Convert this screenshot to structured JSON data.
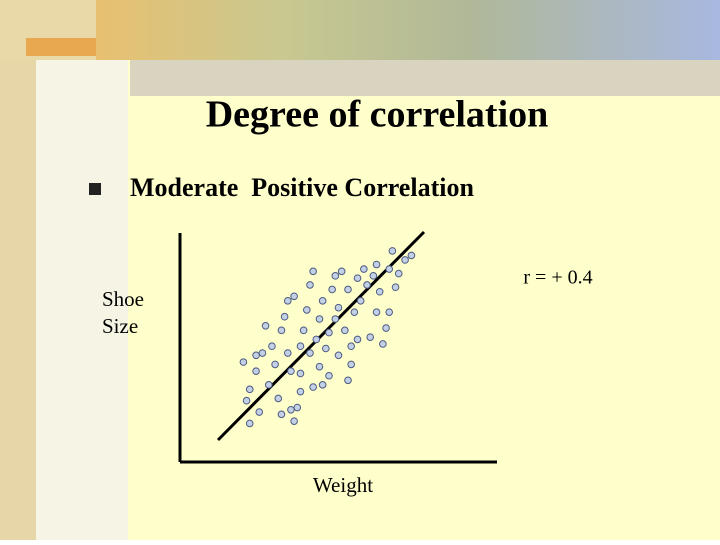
{
  "title": "Degree of correlation",
  "bullet": "Moderate  Positive Correlation",
  "chart_data": {
    "type": "scatter",
    "xlabel": "Weight",
    "ylabel": [
      "Shoe",
      "Size"
    ],
    "annotation": "r = + 0.4",
    "color": "#c4d0e6",
    "xlim": [
      0,
      100
    ],
    "ylim": [
      0,
      100
    ],
    "x": [
      20,
      21,
      22,
      22,
      24,
      24,
      25,
      26,
      27,
      28,
      29,
      30,
      31,
      32,
      32,
      33,
      34,
      34,
      35,
      35,
      36,
      37,
      36,
      38,
      38,
      38,
      39,
      40,
      41,
      41,
      42,
      42,
      43,
      44,
      44,
      45,
      45,
      46,
      47,
      47,
      48,
      49,
      49,
      50,
      50,
      51,
      52,
      53,
      53,
      54,
      54,
      55,
      56,
      56,
      57,
      58,
      59,
      60,
      61,
      62,
      62,
      63,
      64,
      65,
      66,
      66,
      67,
      68,
      69,
      71,
      73
    ],
    "values": [
      44,
      27,
      17,
      32,
      47,
      40,
      22,
      48,
      60,
      34,
      51,
      43,
      28,
      21,
      58,
      64,
      71,
      48,
      40,
      23,
      18,
      24,
      73,
      51,
      39,
      31,
      58,
      67,
      78,
      48,
      33,
      84,
      54,
      42,
      63,
      34,
      71,
      50,
      38,
      57,
      76,
      63,
      82,
      47,
      68,
      84,
      58,
      76,
      36,
      51,
      43,
      66,
      81,
      54,
      71,
      85,
      78,
      55,
      82,
      66,
      87,
      75,
      52,
      59,
      66,
      85,
      93,
      77,
      83,
      89,
      91
    ]
  }
}
